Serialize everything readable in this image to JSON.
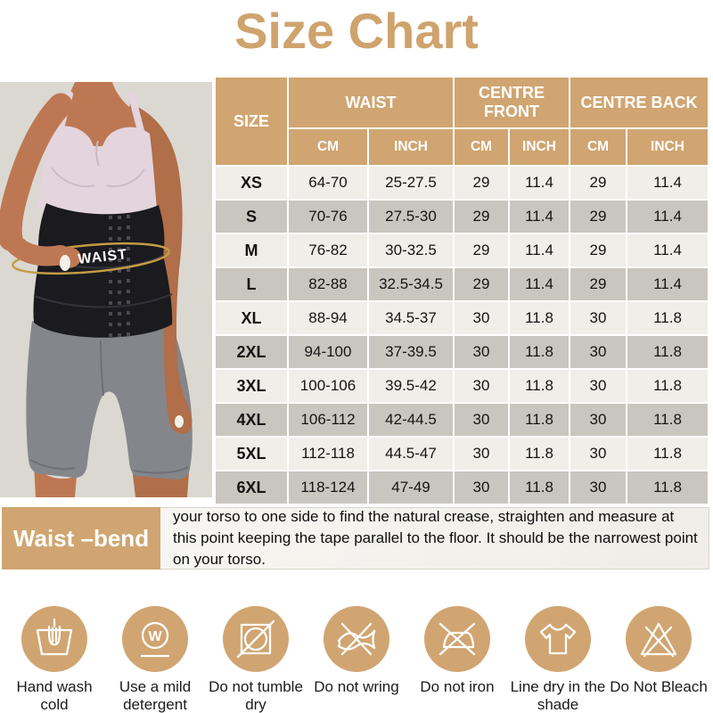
{
  "title": "Size Chart",
  "photo": {
    "waist_label": "WAIST"
  },
  "table": {
    "headers": {
      "size": "SIZE",
      "waist": "WAIST",
      "centre_front": "CENTRE FRONT",
      "centre_back": "CENTRE BACK",
      "cm": "CM",
      "inch": "INCH"
    },
    "rows": [
      {
        "size": "XS",
        "waist_cm": "64-70",
        "waist_inch": "25-27.5",
        "cf_cm": "29",
        "cf_inch": "11.4",
        "cb_cm": "29",
        "cb_inch": "11.4"
      },
      {
        "size": "S",
        "waist_cm": "70-76",
        "waist_inch": "27.5-30",
        "cf_cm": "29",
        "cf_inch": "11.4",
        "cb_cm": "29",
        "cb_inch": "11.4"
      },
      {
        "size": "M",
        "waist_cm": "76-82",
        "waist_inch": "30-32.5",
        "cf_cm": "29",
        "cf_inch": "11.4",
        "cb_cm": "29",
        "cb_inch": "11.4"
      },
      {
        "size": "L",
        "waist_cm": "82-88",
        "waist_inch": "32.5-34.5",
        "cf_cm": "29",
        "cf_inch": "11.4",
        "cb_cm": "29",
        "cb_inch": "11.4"
      },
      {
        "size": "XL",
        "waist_cm": "88-94",
        "waist_inch": "34.5-37",
        "cf_cm": "30",
        "cf_inch": "11.8",
        "cb_cm": "30",
        "cb_inch": "11.8"
      },
      {
        "size": "2XL",
        "waist_cm": "94-100",
        "waist_inch": "37-39.5",
        "cf_cm": "30",
        "cf_inch": "11.8",
        "cb_cm": "30",
        "cb_inch": "11.8"
      },
      {
        "size": "3XL",
        "waist_cm": "100-106",
        "waist_inch": "39.5-42",
        "cf_cm": "30",
        "cf_inch": "11.8",
        "cb_cm": "30",
        "cb_inch": "11.8"
      },
      {
        "size": "4XL",
        "waist_cm": "106-112",
        "waist_inch": "42-44.5",
        "cf_cm": "30",
        "cf_inch": "11.8",
        "cb_cm": "30",
        "cb_inch": "11.8"
      },
      {
        "size": "5XL",
        "waist_cm": "112-118",
        "waist_inch": "44.5-47",
        "cf_cm": "30",
        "cf_inch": "11.8",
        "cb_cm": "30",
        "cb_inch": "11.8"
      },
      {
        "size": "6XL",
        "waist_cm": "118-124",
        "waist_inch": "47-49",
        "cf_cm": "30",
        "cf_inch": "11.8",
        "cb_cm": "30",
        "cb_inch": "11.8"
      }
    ]
  },
  "measure": {
    "label": "Waist –bend",
    "instructions": "your torso to one side to find the natural crease, straighten and measure at this point keeping the tape parallel to the floor. It should be the narrowest point on your torso."
  },
  "care": {
    "detergent_symbol": "W",
    "items": [
      {
        "icon": "hand-wash-icon",
        "label": "Hand wash cold"
      },
      {
        "icon": "mild-detergent-icon",
        "label": "Use a mild detergent"
      },
      {
        "icon": "no-tumble-dry-icon",
        "label": "Do not tumble dry"
      },
      {
        "icon": "no-wring-icon",
        "label": "Do not wring"
      },
      {
        "icon": "no-iron-icon",
        "label": "Do not iron"
      },
      {
        "icon": "line-dry-shade-icon",
        "label": "Line dry in the shade"
      },
      {
        "icon": "no-bleach-icon",
        "label": "Do Not Bleach"
      }
    ]
  },
  "colors": {
    "accent_tan": "#D0A571",
    "row_light": "#F0EEE8",
    "row_dark": "#C9C6BF",
    "photo_background": "#DBD8D1",
    "tape_gold": "#C49B44"
  }
}
